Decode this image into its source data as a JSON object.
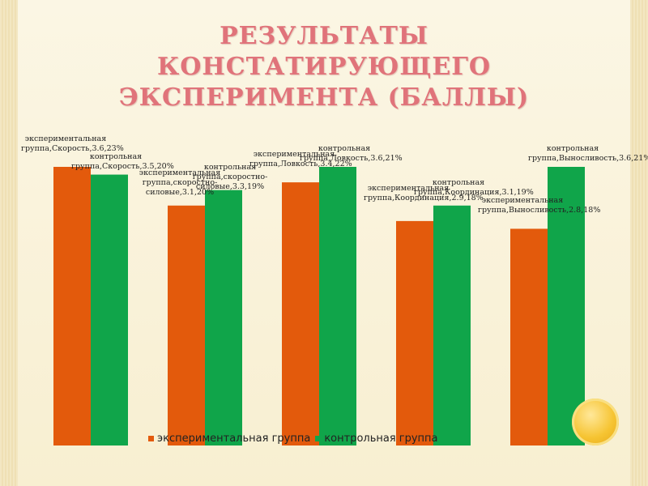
{
  "slide": {
    "title_line1": "РЕЗУЛЬТАТЫ  КОНСТАТИРУЮЩЕГО",
    "title_line2": "ЭКСПЕРИМЕНТА (БАЛЛЫ)"
  },
  "colors": {
    "experimental": "#e35a0c",
    "control": "#10a54a",
    "title": "#e0737a",
    "accent_circle": "#f6c432"
  },
  "chart_data": {
    "type": "bar",
    "title": "",
    "xlabel": "",
    "ylabel": "",
    "ylim": [
      0,
      4
    ],
    "categories": [
      "Скорость",
      "скоростно-силовые",
      "Ловкость",
      "Координация",
      "Выносливость"
    ],
    "series": [
      {
        "name": "экспериментальная группа",
        "values": [
          3.6,
          3.1,
          3.4,
          2.9,
          2.8
        ]
      },
      {
        "name": "контрольная группа",
        "values": [
          3.5,
          3.3,
          3.6,
          3.1,
          3.6
        ]
      }
    ],
    "data_labels": [
      [
        "экспериментальная группа,Скорость,3.6,23%",
        "контрольная группа,Скорость,3.5,20%"
      ],
      [
        "экспериментальная группа,скоростно-силовые,3.1,20%",
        "контрольная группа,скоростно-силовые,3.3,19%"
      ],
      [
        "экспериментальная группа,Ловкость,3.4,22%",
        "контрольная группа,Ловкость,3.6,21%"
      ],
      [
        "экспериментальная группа,Координация,2.9,18%",
        "контрольная группа,Координация,3.1,19%"
      ],
      [
        "экспериментальная группа,Выносливость,2.8,18%",
        "контрольная группа,Выносливость,3.6,21%"
      ]
    ],
    "legend": [
      "экспериментальная группа",
      "контрольная группа"
    ],
    "legend_position": "bottom",
    "grid": false
  }
}
